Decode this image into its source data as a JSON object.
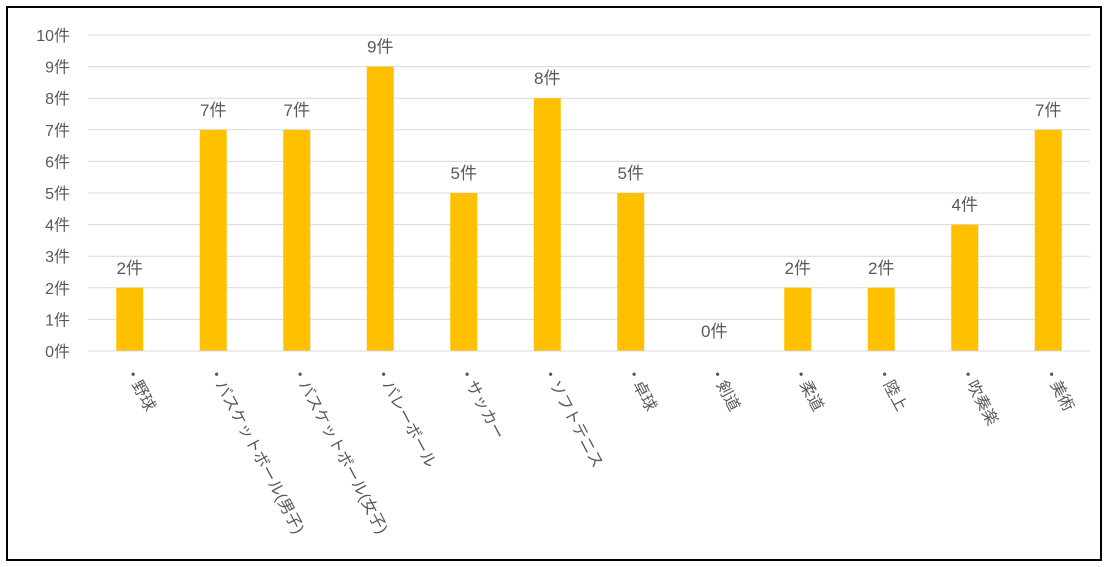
{
  "chart_data": {
    "type": "bar",
    "title": "",
    "xlabel": "",
    "ylabel": "",
    "unit_suffix": "件",
    "categories": [
      "・野球",
      "・バスケットボール(男子)",
      "・バスケットボール(女子)",
      "・バレーボール",
      "・サッカー",
      "・ソフトテニス",
      "・卓球",
      "・剣道",
      "・柔道",
      "・陸上",
      "・吹奏楽",
      "・美術"
    ],
    "values": [
      2,
      7,
      7,
      9,
      5,
      8,
      5,
      0,
      2,
      2,
      4,
      7
    ],
    "data_labels": [
      "2件",
      "7件",
      "7件",
      "9件",
      "5件",
      "8件",
      "5件",
      "0件",
      "2件",
      "2件",
      "4件",
      "7件"
    ],
    "yticks": [
      "0件",
      "1件",
      "2件",
      "3件",
      "4件",
      "5件",
      "6件",
      "7件",
      "8件",
      "9件",
      "10件"
    ],
    "ylim": [
      0,
      10
    ],
    "grid": true,
    "legend": "none",
    "colors": {
      "bar": "#FFC000",
      "grid": "#D9D9D9",
      "axis": "#D9D9D9",
      "text": "#595959",
      "border": "#000000"
    }
  }
}
